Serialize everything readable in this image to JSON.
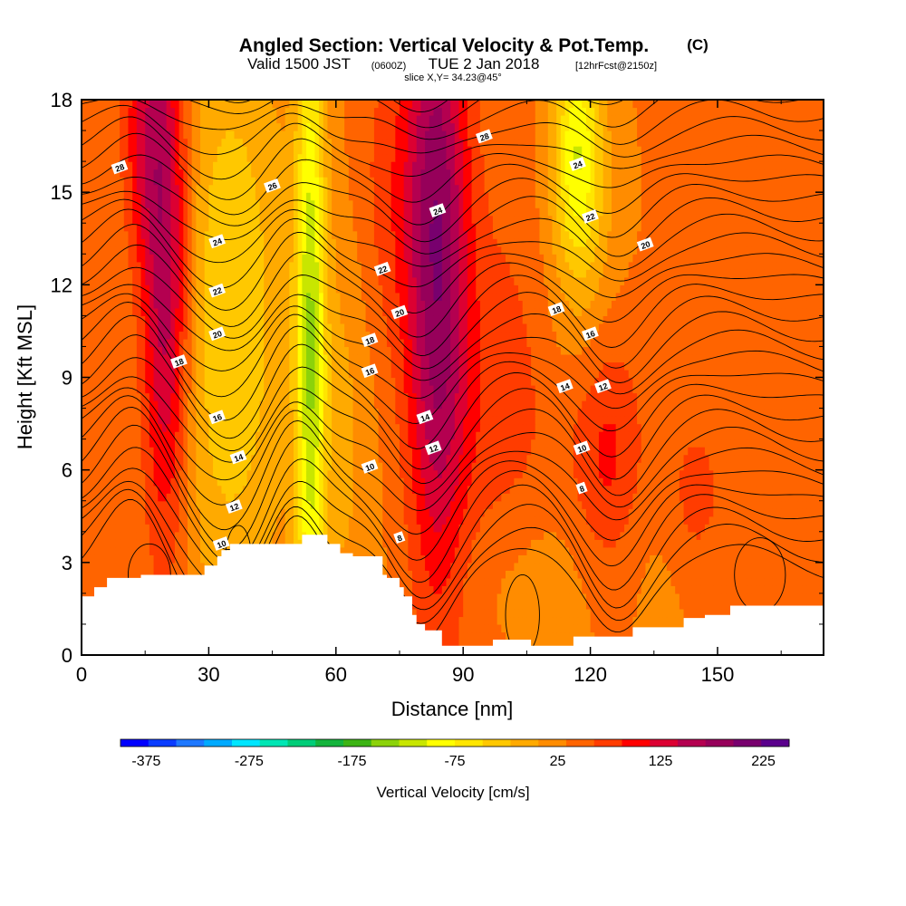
{
  "title": {
    "main": "Angled Section: Vertical Velocity & Pot.Temp.",
    "main_unit": "(C)",
    "valid_a": "Valid 1500 JST",
    "valid_zulu": "(0600Z)",
    "valid_b": "TUE 2 Jan 2018",
    "forecast": "[12hrFcst@2150z]",
    "slice": "slice X,Y= 34.23@45°"
  },
  "chart_data": {
    "type": "heatmap",
    "xlabel": "Distance [nm]",
    "ylabel": "Height [Kft MSL]",
    "xlim": [
      0,
      175
    ],
    "ylim": [
      0,
      18
    ],
    "x_ticks": [
      0,
      30,
      60,
      90,
      120,
      150
    ],
    "y_ticks": [
      0,
      3,
      6,
      9,
      12,
      15,
      18
    ],
    "colorbar": {
      "label": "Vertical Velocity [cm/s]",
      "range": [
        -400,
        250
      ],
      "tick_values": [
        -375,
        -275,
        -175,
        -75,
        25,
        125,
        225
      ],
      "tick_labels": [
        "-375",
        "-275",
        "-175",
        "-75",
        "25",
        "125",
        "225"
      ],
      "colors": [
        "#0000ff",
        "#0a3cff",
        "#1e78ff",
        "#00aaff",
        "#00e6ff",
        "#00e6b4",
        "#00cd78",
        "#14b43c",
        "#3cb414",
        "#8cd20a",
        "#c8e600",
        "#ffff00",
        "#ffe600",
        "#ffc800",
        "#ffaa00",
        "#ff8c00",
        "#ff6400",
        "#ff3c00",
        "#ff0000",
        "#dc0032",
        "#b40050",
        "#96005a",
        "#78006e",
        "#5a008c"
      ]
    },
    "velocity_field": {
      "background_cm_s": 35,
      "features": [
        {
          "name": "updraft",
          "x": 20,
          "z": 12,
          "sx": 4,
          "sz": 6,
          "peak": 140
        },
        {
          "name": "updraft",
          "x": 15,
          "z": 17,
          "sx": 4,
          "sz": 3,
          "peak": 70
        },
        {
          "name": "updraft",
          "x": 84,
          "z": 13,
          "sx": 5,
          "sz": 8,
          "peak": 140
        },
        {
          "name": "updraft",
          "x": 74,
          "z": 15,
          "sx": 8,
          "sz": 4,
          "peak": 40
        },
        {
          "name": "updraft",
          "x": 98,
          "z": 8,
          "sx": 10,
          "sz": 5,
          "peak": 40
        },
        {
          "name": "updraft",
          "x": 124,
          "z": 6.5,
          "sx": 6,
          "sz": 3,
          "peak": 60
        },
        {
          "name": "updraft",
          "x": 145,
          "z": 5,
          "sx": 5,
          "sz": 2,
          "peak": 40
        },
        {
          "name": "downdraft",
          "x": 35,
          "z": 11,
          "sx": 10,
          "sz": 7,
          "peak": -80
        },
        {
          "name": "downdraft",
          "x": 54,
          "z": 10,
          "sx": 2.5,
          "sz": 8,
          "peak": -150
        },
        {
          "name": "downdraft",
          "x": 62,
          "z": 8,
          "sx": 5,
          "sz": 6,
          "peak": -35
        },
        {
          "name": "downdraft",
          "x": 117,
          "z": 16.5,
          "sx": 4,
          "sz": 2.5,
          "peak": -120
        },
        {
          "name": "downdraft",
          "x": 118,
          "z": 13,
          "sx": 6,
          "sz": 3,
          "peak": -40
        },
        {
          "name": "downdraft",
          "x": 105,
          "z": 2.5,
          "sx": 15,
          "sz": 2,
          "peak": -25
        },
        {
          "name": "downdraft",
          "x": 140,
          "z": 3,
          "sx": 10,
          "sz": 2,
          "peak": -10
        }
      ]
    },
    "terrain_kft": {
      "x": [
        0,
        3,
        3,
        6,
        6,
        14,
        14,
        29,
        29,
        32,
        32,
        33,
        33,
        35,
        35,
        52,
        52,
        58,
        58,
        61,
        61,
        64,
        64,
        71,
        71,
        72,
        72,
        75,
        75,
        76,
        76,
        78,
        78,
        79,
        79,
        81,
        81,
        85,
        85,
        97,
        97,
        106,
        106,
        116,
        116,
        130,
        130,
        142,
        142,
        147,
        147,
        153,
        153,
        160,
        160,
        175
      ],
      "z": [
        1.9,
        1.9,
        2.2,
        2.2,
        2.5,
        2.5,
        2.6,
        2.6,
        2.9,
        2.9,
        3.2,
        3.2,
        3.4,
        3.4,
        3.6,
        3.6,
        3.9,
        3.9,
        3.6,
        3.6,
        3.3,
        3.3,
        3.2,
        3.2,
        2.6,
        2.6,
        2.5,
        2.5,
        2.2,
        2.2,
        1.9,
        1.9,
        1.3,
        1.3,
        1.0,
        1.0,
        0.8,
        0.8,
        0.3,
        0.3,
        0.5,
        0.5,
        0.3,
        0.3,
        0.6,
        0.6,
        0.9,
        0.9,
        1.2,
        1.2,
        1.3,
        1.3,
        1.6,
        1.6,
        1.6,
        1.6
      ]
    },
    "isotherms": {
      "unit": "C",
      "levels": [
        8,
        10,
        12,
        14,
        16,
        18,
        20,
        22,
        24,
        26,
        28
      ]
    },
    "contour_labels": [
      {
        "text": "28",
        "x": 9,
        "z": 15.8
      },
      {
        "text": "26",
        "x": 45,
        "z": 15.2
      },
      {
        "text": "24",
        "x": 32,
        "z": 13.4
      },
      {
        "text": "22",
        "x": 32,
        "z": 11.8
      },
      {
        "text": "20",
        "x": 32,
        "z": 10.4
      },
      {
        "text": "18",
        "x": 23,
        "z": 9.5
      },
      {
        "text": "16",
        "x": 32,
        "z": 7.7
      },
      {
        "text": "14",
        "x": 37,
        "z": 6.4
      },
      {
        "text": "12",
        "x": 36,
        "z": 4.8
      },
      {
        "text": "10",
        "x": 33,
        "z": 3.6
      },
      {
        "text": "28",
        "x": 95,
        "z": 16.8
      },
      {
        "text": "24",
        "x": 84,
        "z": 14.4
      },
      {
        "text": "22",
        "x": 71,
        "z": 12.5
      },
      {
        "text": "20",
        "x": 75,
        "z": 11.1
      },
      {
        "text": "18",
        "x": 68,
        "z": 10.2
      },
      {
        "text": "16",
        "x": 68,
        "z": 9.2
      },
      {
        "text": "14",
        "x": 81,
        "z": 7.7
      },
      {
        "text": "12",
        "x": 83,
        "z": 6.7
      },
      {
        "text": "10",
        "x": 68,
        "z": 6.1
      },
      {
        "text": "8",
        "x": 75,
        "z": 3.8
      },
      {
        "text": "24",
        "x": 117,
        "z": 15.9
      },
      {
        "text": "22",
        "x": 120,
        "z": 14.2
      },
      {
        "text": "20",
        "x": 133,
        "z": 13.3
      },
      {
        "text": "18",
        "x": 112,
        "z": 11.2
      },
      {
        "text": "16",
        "x": 120,
        "z": 10.4
      },
      {
        "text": "14",
        "x": 114,
        "z": 8.7
      },
      {
        "text": "12",
        "x": 123,
        "z": 8.7
      },
      {
        "text": "10",
        "x": 118,
        "z": 6.7
      },
      {
        "text": "8",
        "x": 118,
        "z": 5.4
      }
    ]
  }
}
